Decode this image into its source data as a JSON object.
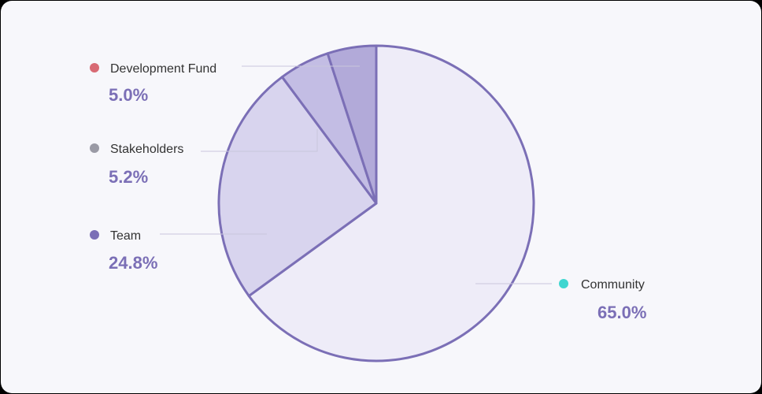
{
  "chart_data": {
    "type": "pie",
    "slices": [
      {
        "label": "Community",
        "value_label": "65.0%",
        "value": 65.0,
        "fill": "#eeecf8",
        "dot_color": "#3fd6d0"
      },
      {
        "label": "Team",
        "value_label": "24.8%",
        "value": 24.8,
        "fill": "#d8d4ee",
        "dot_color": "#7b6fb6"
      },
      {
        "label": "Stakeholders",
        "value_label": "5.2%",
        "value": 5.2,
        "fill": "#c3bde4",
        "dot_color": "#9a9aa5"
      },
      {
        "label": "Development Fund",
        "value_label": "5.0%",
        "value": 5.0,
        "fill": "#b2aad9",
        "dot_color": "#d86a74"
      }
    ],
    "stroke_color": "#7b6fb6",
    "title": "",
    "legend": "callouts"
  }
}
